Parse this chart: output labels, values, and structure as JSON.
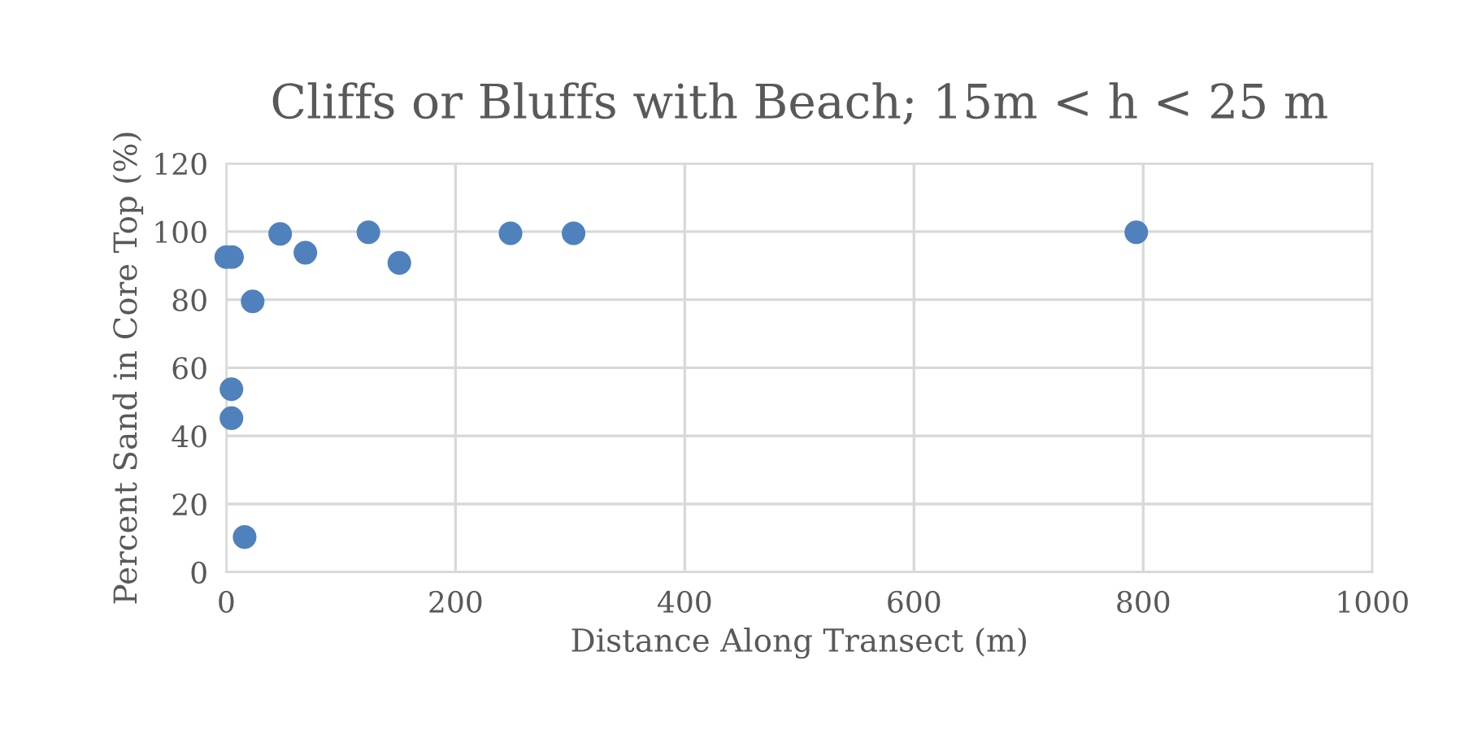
{
  "chart_data": {
    "type": "scatter",
    "title": "Cliffs or Bluffs with Beach; 15m < h < 25 m",
    "xlabel": "Distance Along Transect (m)",
    "ylabel": "Percent Sand in Core Top (%)",
    "series": [
      {
        "color": "#4f81bd",
        "x": [
          0,
          5,
          47,
          69,
          23,
          124,
          151,
          248,
          303,
          4.5,
          4.5,
          16,
          794
        ],
        "values": [
          92.5,
          92.5,
          99.3,
          93.8,
          79.5,
          99.8,
          90.8,
          99.5,
          99.5,
          53.7,
          45.2,
          10.3,
          99.8
        ]
      }
    ],
    "xlim": [
      0,
      1000
    ],
    "xticks": [
      0,
      200,
      400,
      600,
      800,
      1000
    ],
    "ylim": [
      0,
      120
    ],
    "yticks": [
      0,
      20,
      40,
      60,
      80,
      100,
      120
    ],
    "grid": true,
    "marker": "circle",
    "legend": false
  }
}
